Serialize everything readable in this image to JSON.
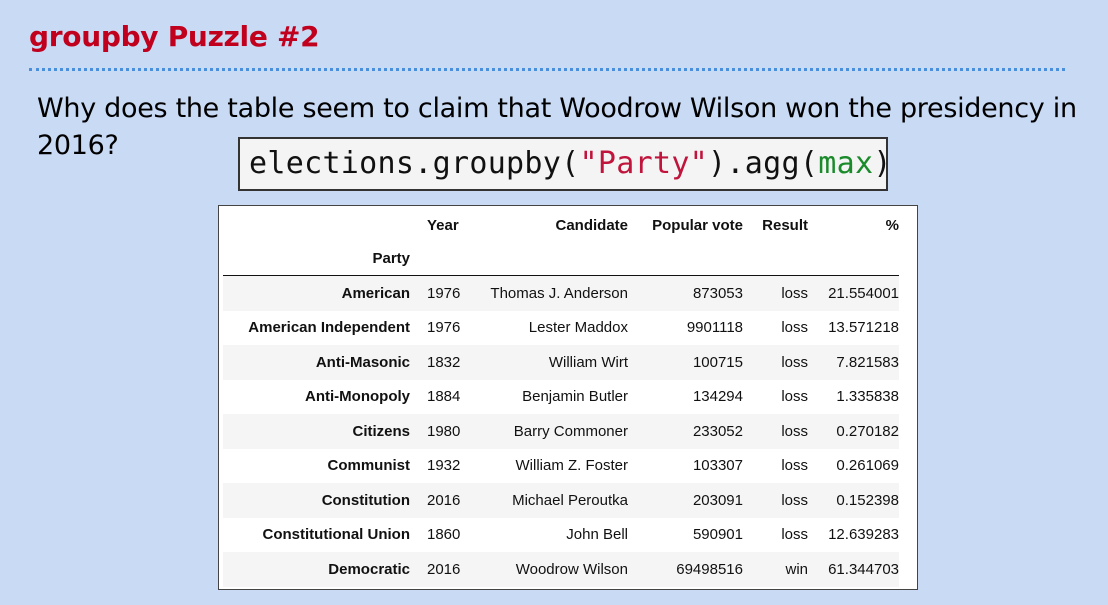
{
  "slide": {
    "title": "groupby Puzzle #2",
    "question": "Why does the table seem to claim that Woodrow Wilson won the presidency in 2016?"
  },
  "code": {
    "prefix": "elections.groupby(",
    "string_arg": "\"Party\"",
    "middle": ").agg(",
    "func": "max",
    "suffix": ")"
  },
  "table": {
    "columns": [
      "Year",
      "Candidate",
      "Popular vote",
      "Result",
      "%"
    ],
    "index_name": "Party",
    "rows": [
      {
        "party": "American",
        "year": "1976",
        "candidate": "Thomas J. Anderson",
        "popular_vote": "873053",
        "result": "loss",
        "pct": "21.554001"
      },
      {
        "party": "American Independent",
        "year": "1976",
        "candidate": "Lester Maddox",
        "popular_vote": "9901118",
        "result": "loss",
        "pct": "13.571218"
      },
      {
        "party": "Anti-Masonic",
        "year": "1832",
        "candidate": "William Wirt",
        "popular_vote": "100715",
        "result": "loss",
        "pct": "7.821583"
      },
      {
        "party": "Anti-Monopoly",
        "year": "1884",
        "candidate": "Benjamin Butler",
        "popular_vote": "134294",
        "result": "loss",
        "pct": "1.335838"
      },
      {
        "party": "Citizens",
        "year": "1980",
        "candidate": "Barry Commoner",
        "popular_vote": "233052",
        "result": "loss",
        "pct": "0.270182"
      },
      {
        "party": "Communist",
        "year": "1932",
        "candidate": "William Z. Foster",
        "popular_vote": "103307",
        "result": "loss",
        "pct": "0.261069"
      },
      {
        "party": "Constitution",
        "year": "2016",
        "candidate": "Michael Peroutka",
        "popular_vote": "203091",
        "result": "loss",
        "pct": "0.152398"
      },
      {
        "party": "Constitutional Union",
        "year": "1860",
        "candidate": "John Bell",
        "popular_vote": "590901",
        "result": "loss",
        "pct": "12.639283"
      },
      {
        "party": "Democratic",
        "year": "2016",
        "candidate": "Woodrow Wilson",
        "popular_vote": "69498516",
        "result": "win",
        "pct": "61.344703"
      }
    ]
  },
  "colors": {
    "title": "#c0001d",
    "background": "#c9daf5",
    "rule": "#4a8fdc",
    "code_string": "#c0143c",
    "code_builtin": "#1a8a2a"
  }
}
